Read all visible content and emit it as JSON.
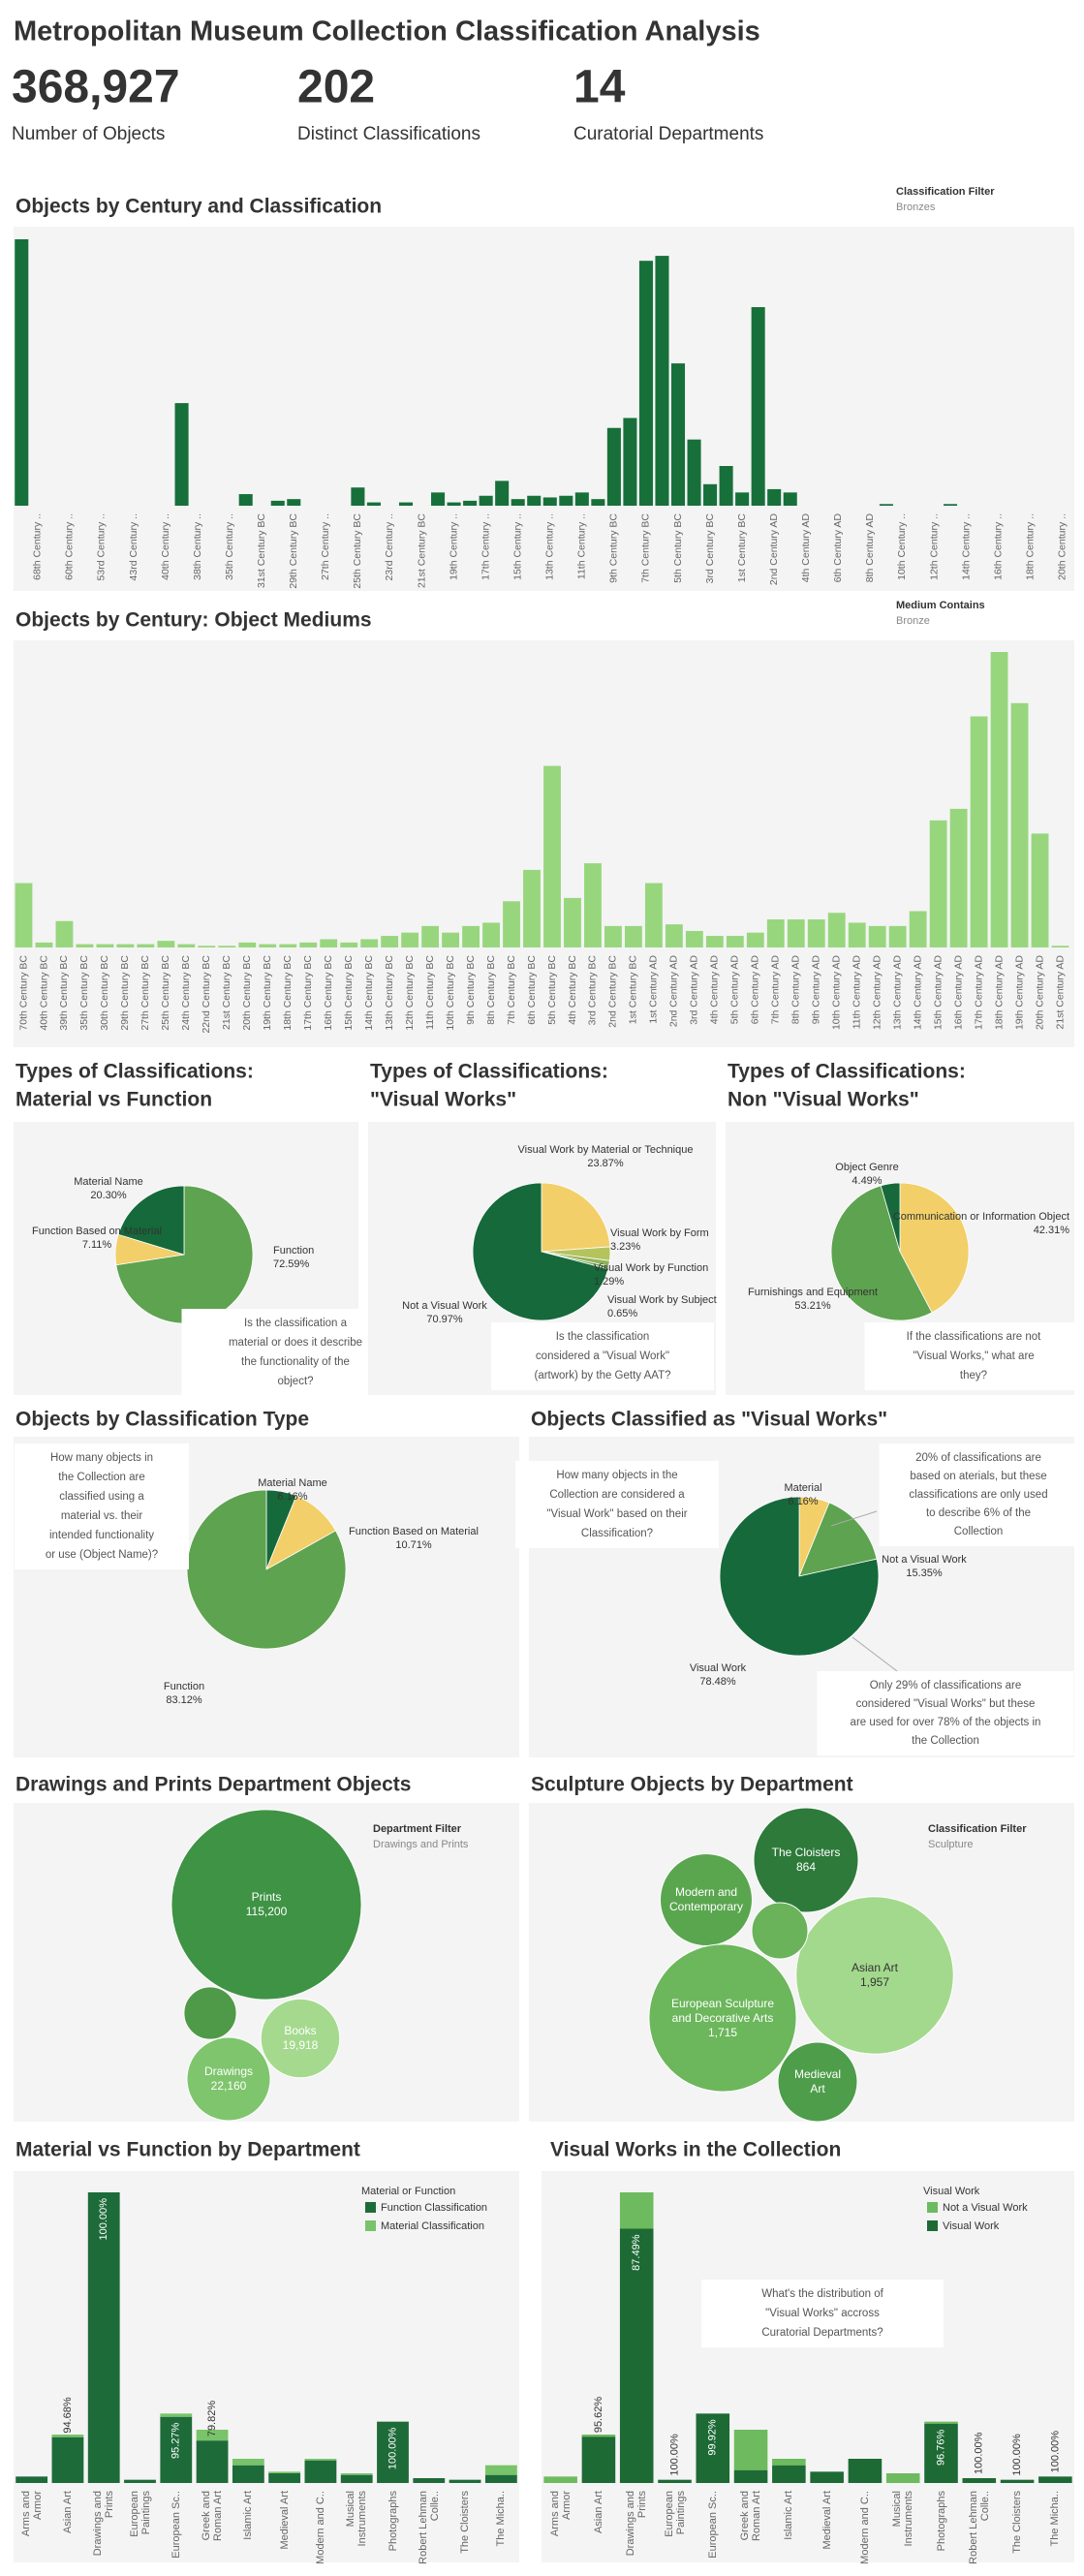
{
  "header": {
    "title": "Metropolitan Museum Collection Classification Analysis",
    "kpis": [
      {
        "value": "368,927",
        "label": "Number of  Objects"
      },
      {
        "value": "202",
        "label": "Distinct Classifications"
      },
      {
        "value": "14",
        "label": "Curatorial Departments"
      }
    ]
  },
  "chart_data": [
    {
      "type": "bar",
      "title": "Objects by Century and Classification",
      "filter_title": "Classification Filter",
      "filter_value": "Bronzes",
      "color": "#17703a",
      "categories": [
        null,
        "68th Century ..",
        null,
        "60th Century ..",
        null,
        "53rd Century ..",
        null,
        "43rd Century ..",
        null,
        "40th Century ..",
        null,
        "38th Century ..",
        null,
        "35th Century ..",
        null,
        "31st Century BC",
        null,
        "29th Century BC",
        null,
        "27th Century ..",
        null,
        "25th Century BC",
        null,
        "23rd Century ..",
        null,
        "21st Century BC",
        null,
        "19th Century ..",
        null,
        "17th Century ..",
        null,
        "15th Century ..",
        null,
        "13th Century ..",
        null,
        "11th Century ..",
        null,
        "9th Century BC",
        null,
        "7th Century BC",
        null,
        "5th Century BC",
        null,
        "3rd Century BC",
        null,
        "1st Century BC",
        null,
        "2nd Century AD",
        null,
        "4th Century AD",
        null,
        "6th Century AD",
        null,
        "8th Century AD",
        null,
        "10th Century ..",
        null,
        "12th Century ..",
        null,
        "14th Century ..",
        null,
        "16th Century ..",
        null,
        "18th Century ..",
        null,
        "20th Century .."
      ],
      "values": [
        161,
        null,
        null,
        null,
        null,
        null,
        null,
        null,
        null,
        null,
        62,
        null,
        null,
        null,
        7,
        null,
        3,
        4,
        null,
        null,
        null,
        11,
        2,
        null,
        2,
        null,
        8,
        2,
        3,
        6,
        15,
        4,
        6,
        5,
        6,
        8,
        4,
        47,
        53,
        148,
        151,
        86,
        40,
        13,
        24,
        8,
        120,
        10,
        8,
        null,
        null,
        null,
        null,
        null,
        1,
        null,
        null,
        null,
        1,
        null,
        null,
        null,
        null,
        null,
        null,
        null
      ]
    },
    {
      "type": "bar",
      "title": "Objects by Century: Object Mediums",
      "filter_title": "Medium Contains",
      "filter_value": "Bronze",
      "color": "#98d67e",
      "categories": [
        "70th Century BC",
        "40th Century BC",
        "39th Century BC",
        "35th Century BC",
        "30th Century BC",
        "29th Century BC",
        "27th Century BC",
        "25th Century BC",
        "24th Century BC",
        "22nd Century BC",
        "21st Century BC",
        "20th Century BC",
        "19th Century BC",
        "18th Century BC",
        "17th Century BC",
        "16th Century BC",
        "15th Century BC",
        "14th Century BC",
        "13th Century BC",
        "12th Century BC",
        "11th Century BC",
        "10th Century BC",
        "9th Century BC",
        "8th Century BC",
        "7th Century BC",
        "6th Century BC",
        "5th Century BC",
        "4th Century BC",
        "3rd Century BC",
        "2nd Century BC",
        "1st Century BC",
        "1st Century AD",
        "2nd Century AD",
        "3rd Century AD",
        "4th Century AD",
        "5th Century AD",
        "6th Century AD",
        "7th Century AD",
        "8th Century AD",
        "9th Century AD",
        "10th Century AD",
        "11th Century AD",
        "12th Century AD",
        "13th Century AD",
        "14th Century AD",
        "15th Century AD",
        "16th Century AD",
        "17th Century AD",
        "18th Century AD",
        "19th Century AD",
        "20th Century AD",
        "21st Century AD"
      ],
      "values": [
        39,
        3,
        16,
        2,
        2,
        2,
        2,
        4,
        2,
        1,
        1,
        3,
        2,
        2,
        3,
        5,
        3,
        5,
        7,
        9,
        13,
        9,
        13,
        15,
        28,
        47,
        110,
        30,
        51,
        13,
        13,
        39,
        14,
        10,
        7,
        7,
        9,
        17,
        17,
        17,
        21,
        15,
        13,
        13,
        22,
        77,
        84,
        140,
        179,
        148,
        69,
        1
      ]
    },
    {
      "type": "pie",
      "title": [
        "Types of Classifications:",
        "Material vs Function"
      ],
      "categories": [
        "Function",
        "Function Based on Material",
        "Material Name"
      ],
      "values": [
        72.59,
        7.11,
        20.3
      ],
      "value_labels": [
        "72.59%",
        "7.11%",
        "20.30%"
      ],
      "colors": [
        "#5ea34f",
        "#f2cf68",
        "#16693a"
      ],
      "annotations": [
        [
          "Is the classification a",
          "material or does it describe",
          "the functionality of the",
          "object?"
        ]
      ]
    },
    {
      "type": "pie",
      "title": [
        "Types of Classifications:",
        "\"Visual Works\""
      ],
      "categories": [
        "Visual Work by Material or Technique",
        "Visual Work by Form",
        "Visual Work by Function",
        "Visual Work by Subject",
        "Not a Visual Work"
      ],
      "values": [
        23.87,
        3.23,
        1.29,
        0.65,
        70.97
      ],
      "value_labels": [
        "23.87%",
        "3.23%",
        "1.29%",
        "0.65%",
        "70.97%"
      ],
      "colors": [
        "#f2cf68",
        "#b5c35c",
        "#8fb35a",
        "#6e9f4e",
        "#16693a"
      ],
      "annotations": [
        [
          "Is the classification",
          "considered a \"Visual Work\"",
          "(artwork) by the Getty AAT?"
        ]
      ]
    },
    {
      "type": "pie",
      "title": [
        "Types of Classifications:",
        "Non \"Visual Works\""
      ],
      "categories": [
        "Communication or Information Object",
        "Furnishings and Equipment",
        "Object Genre"
      ],
      "values": [
        42.31,
        53.21,
        4.49
      ],
      "value_labels": [
        "42.31%",
        "53.21%",
        "4.49%"
      ],
      "colors": [
        "#f2cf68",
        "#5ea34f",
        "#16693a"
      ],
      "annotations": [
        [
          "If the classifications are not",
          "\"Visual Works,\" what are",
          "they?"
        ]
      ]
    },
    {
      "type": "pie",
      "title": [
        "Objects by Classification Type"
      ],
      "categories": [
        "Material Name",
        "Function Based on Material",
        "Function"
      ],
      "values": [
        6.16,
        10.71,
        83.12
      ],
      "value_labels": [
        "6.16%",
        "10.71%",
        "83.12%"
      ],
      "colors": [
        "#16693a",
        "#f2cf68",
        "#5ea34f"
      ],
      "annotations": [
        [
          "How many objects in",
          "the Collection are",
          "classified using a",
          "material vs. their",
          "intended functionality",
          "or use (Object Name)?"
        ]
      ]
    },
    {
      "type": "pie",
      "title": [
        "Objects Classified as \"Visual Works\""
      ],
      "categories": [
        "Material",
        "Not a Visual Work",
        "Visual Work"
      ],
      "values": [
        6.16,
        15.35,
        78.48
      ],
      "value_labels": [
        "6.16%",
        "15.35%",
        "78.48%"
      ],
      "colors": [
        "#f2cf68",
        "#5ea34f",
        "#16693a"
      ],
      "annotations": [
        [
          "How many objects in the",
          "Collection are considered a",
          "\"Visual Work\" based on their",
          "Classification?"
        ],
        [
          "20% of classifications are",
          "based on aterials, but these",
          "classifications are only used",
          "to describe 6% of the",
          "Collection"
        ],
        [
          "Only 29% of classifications are",
          "considered \"Visual Works\" but these",
          "are used for over 78% of the objects in",
          "the Collection"
        ]
      ]
    },
    {
      "type": "bubble",
      "title": "Drawings and Prints Department Objects",
      "filter_title": "Department Filter",
      "filter_value": "Drawings and Prints",
      "categories": [
        "Prints",
        "Books",
        "Drawings",
        null
      ],
      "values": [
        115200,
        19918,
        22160,
        8800
      ],
      "value_labels": [
        "115,200",
        "19,918",
        "22,160",
        null
      ],
      "colors": [
        "#3f9345",
        "#a5da8e",
        "#7fc56d",
        "#4f9a48"
      ]
    },
    {
      "type": "bubble",
      "title": "Sculpture Objects by Department",
      "filter_title": "Classification Filter",
      "filter_value": "Sculpture",
      "categories": [
        "The Cloisters",
        "Modern and Contemporary",
        "Asian Art",
        "European Sculpture and Decorative Arts",
        "Medieval Art",
        null
      ],
      "values": [
        864,
        669,
        1957,
        1715,
        498,
        249
      ],
      "value_labels": [
        "864",
        null,
        "1,957",
        "1,715",
        null,
        null
      ],
      "colors": [
        "#2d7a3a",
        "#5aa64f",
        "#a3d98c",
        "#6cb65c",
        "#4e9d4a",
        "#6ab35a"
      ]
    },
    {
      "type": "stacked_bar",
      "title": "Material vs Function by Department",
      "legend_title": "Material or Function",
      "categories": [
        "Arms and Armor",
        "Asian Art",
        "Drawings and Prints",
        "European Paintings",
        "European Sc..",
        "Greek and Roman Art",
        "Islamic Art",
        "Medieval Art",
        "Modern and C..",
        "Musical Instruments",
        "Photographs",
        "Robert Lehman Colle..",
        "The Cloisters",
        "The Micha.."
      ],
      "series": [
        {
          "name": "Function Classification",
          "color": "#1e6b3a",
          "values": [
            4,
            28.4,
            180,
            2,
            41,
            26.3,
            11,
            6,
            14,
            5,
            38,
            3,
            2,
            5
          ],
          "percent_labels": [
            null,
            "94.68%",
            "100.00%",
            null,
            "95.27%",
            "79.82%",
            null,
            null,
            null,
            null,
            "100.00%",
            null,
            null,
            null
          ]
        },
        {
          "name": "Material Classification",
          "color": "#79c36a",
          "values": [
            0,
            1.6,
            0,
            0,
            2,
            6.7,
            4,
            1,
            1,
            1,
            0,
            0,
            0,
            6
          ]
        }
      ]
    },
    {
      "type": "stacked_bar",
      "title": "Visual Works in the Collection",
      "legend_title": "Visual Work",
      "categories": [
        "Arms and Armor",
        "Asian Art",
        "Drawings and Prints",
        "European Paintings",
        "European Sc..",
        "Greek and Roman Art",
        "Islamic Art",
        "Medieval Art",
        "Modern and C..",
        "Musical Instruments",
        "Photographs",
        "Robert Lehman Colle..",
        "The Cloisters",
        "The Micha.."
      ],
      "series": [
        {
          "name": "Not a Visual Work",
          "color": "#6dbb5e",
          "values": [
            4,
            1.3,
            22.5,
            0,
            0,
            25,
            4,
            0,
            0,
            6,
            1.2,
            0,
            0,
            0
          ]
        },
        {
          "name": "Visual Work",
          "color": "#1d6a35",
          "values": [
            0,
            28.7,
            157.5,
            2,
            43,
            8,
            11,
            7,
            15,
            0,
            36.8,
            3,
            2,
            4
          ],
          "percent_labels": [
            null,
            "95.62%",
            "87.49%",
            "100.00%",
            "99.92%",
            null,
            null,
            null,
            null,
            null,
            "96.76%",
            "100.00%",
            "100.00%",
            "100.00%"
          ]
        }
      ],
      "annotations": [
        [
          "What's the distribution of",
          "\"Visual Works\" accross",
          "Curatorial Departments?"
        ]
      ]
    }
  ]
}
